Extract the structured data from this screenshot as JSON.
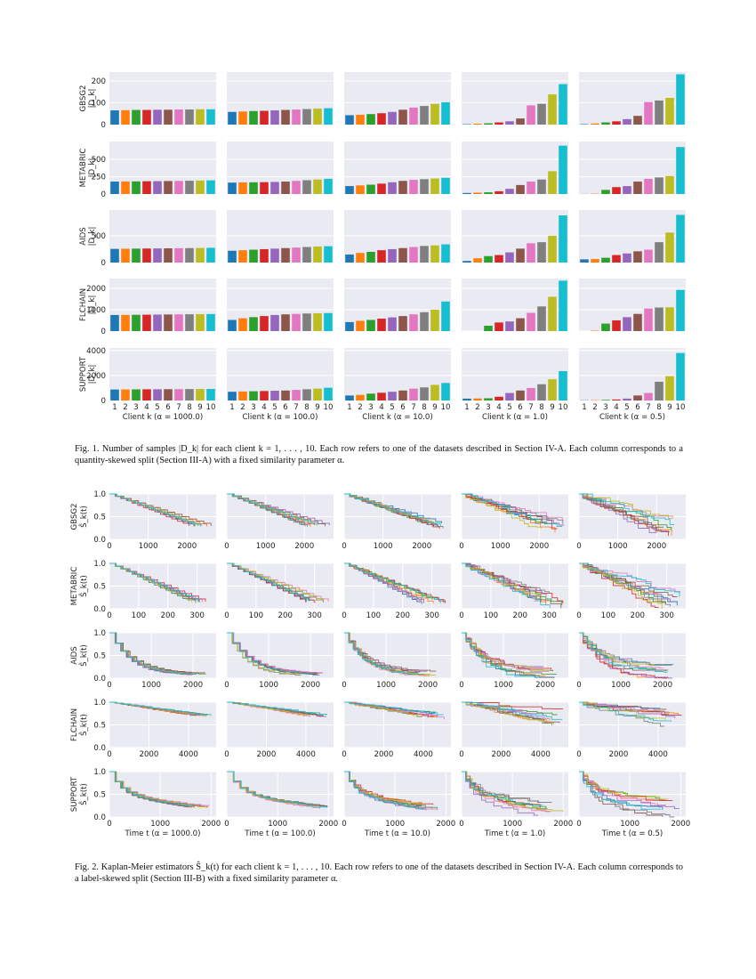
{
  "figure1": {
    "caption": "Fig. 1.  Number of samples |D_k| for each client k = 1, . . . , 10. Each row refers to one of the datasets described in Section IV-A. Each column corresponds to a quantity-skewed split (Section III-A) with a fixed similarity parameter α.",
    "xlabels": [
      "Client k (α = 1000.0)",
      "Client k (α = 100.0)",
      "Client k (α = 10.0)",
      "Client k (α = 1.0)",
      "Client k (α = 0.5)"
    ],
    "ylabel_symbol": "|D_k|"
  },
  "figure2": {
    "caption": "Fig. 2.  Kaplan-Meier estimators Ŝ_k(t) for each client k = 1, . . . , 10. Each row refers to one of the datasets described in Section IV-A. Each column corresponds to a label-skewed split (Section III-B) with a fixed similarity parameter α.",
    "xlabels": [
      "Time t (α = 1000.0)",
      "Time t (α = 100.0)",
      "Time t (α = 10.0)",
      "Time t (α = 1.0)",
      "Time t (α = 0.5)"
    ],
    "ylabel_symbol": "Ŝ_k(t)"
  },
  "colors": [
    "#1f77b4",
    "#ff7f0e",
    "#2ca02c",
    "#d62728",
    "#9467bd",
    "#8c564b",
    "#e377c2",
    "#7f7f7f",
    "#bcbd22",
    "#17becf"
  ],
  "chart_data": [
    {
      "type": "bar",
      "title": "",
      "grid": true,
      "columns": [
        "α = 1000.0",
        "α = 100.0",
        "α = 10.0",
        "α = 1.0",
        "α = 0.5"
      ],
      "categories": [
        "1",
        "2",
        "3",
        "4",
        "5",
        "6",
        "7",
        "8",
        "9",
        "10"
      ],
      "rows": [
        {
          "dataset": "GBSG2",
          "ylim": [
            0,
            240
          ],
          "yticks": [
            0,
            100,
            200
          ],
          "values": [
            [
              65,
              66,
              67,
              67,
              68,
              68,
              69,
              69,
              70,
              70
            ],
            [
              58,
              60,
              62,
              63,
              65,
              67,
              69,
              71,
              73,
              75
            ],
            [
              43,
              45,
              48,
              52,
              58,
              68,
              78,
              85,
              95,
              102
            ],
            [
              2,
              4,
              6,
              10,
              15,
              28,
              88,
              95,
              138,
              185
            ],
            [
              2,
              5,
              10,
              15,
              25,
              40,
              103,
              110,
              122,
              230
            ]
          ]
        },
        {
          "dataset": "METABRIC",
          "ylim": [
            0,
            760
          ],
          "yticks": [
            0,
            250,
            500
          ],
          "values": [
            [
              180,
              182,
              183,
              185,
              186,
              188,
              190,
              192,
              195,
              198
            ],
            [
              165,
              168,
              170,
              172,
              175,
              180,
              190,
              200,
              210,
              220
            ],
            [
              115,
              125,
              135,
              150,
              170,
              190,
              205,
              215,
              225,
              235
            ],
            [
              15,
              20,
              25,
              40,
              75,
              130,
              180,
              210,
              330,
              700
            ],
            [
              2,
              5,
              60,
              100,
              115,
              180,
              220,
              240,
              260,
              680
            ]
          ]
        },
        {
          "dataset": "AIDS",
          "ylim": [
            0,
            980
          ],
          "yticks": [
            0,
            500
          ],
          "values": [
            [
              255,
              258,
              260,
              262,
              264,
              266,
              268,
              270,
              272,
              275
            ],
            [
              220,
              230,
              240,
              250,
              260,
              270,
              280,
              290,
              300,
              305
            ],
            [
              150,
              180,
              200,
              230,
              250,
              270,
              290,
              310,
              320,
              340
            ],
            [
              30,
              80,
              120,
              140,
              190,
              260,
              360,
              380,
              500,
              880
            ],
            [
              60,
              65,
              90,
              140,
              170,
              210,
              240,
              380,
              560,
              890
            ]
          ]
        },
        {
          "dataset": "FLCHAIN",
          "ylim": [
            0,
            2450
          ],
          "yticks": [
            0,
            1000,
            2000
          ],
          "values": [
            [
              750,
              755,
              760,
              765,
              770,
              775,
              780,
              785,
              790,
              795
            ],
            [
              520,
              600,
              650,
              700,
              750,
              780,
              800,
              820,
              830,
              840
            ],
            [
              420,
              480,
              520,
              580,
              640,
              700,
              780,
              880,
              1000,
              1380
            ],
            [
              0,
              0,
              250,
              400,
              450,
              600,
              850,
              1150,
              1600,
              2350
            ],
            [
              0,
              20,
              350,
              500,
              650,
              800,
              1050,
              1100,
              1110,
              1920
            ]
          ]
        },
        {
          "dataset": "SUPPORT",
          "ylim": [
            0,
            4200
          ],
          "yticks": [
            0,
            2000,
            4000
          ],
          "values": [
            [
              880,
              885,
              890,
              895,
              900,
              905,
              910,
              915,
              920,
              925
            ],
            [
              700,
              720,
              740,
              760,
              780,
              800,
              850,
              900,
              950,
              1020
            ],
            [
              400,
              450,
              550,
              620,
              700,
              800,
              950,
              1050,
              1250,
              1400
            ],
            [
              150,
              160,
              180,
              300,
              600,
              800,
              1000,
              1300,
              1700,
              2350
            ],
            [
              20,
              30,
              50,
              80,
              150,
              400,
              600,
              1500,
              1950,
              3800
            ]
          ]
        }
      ]
    },
    {
      "type": "line",
      "title": "",
      "grid": true,
      "step": true,
      "columns": [
        "α = 1000.0",
        "α = 100.0",
        "α = 10.0",
        "α = 1.0",
        "α = 0.5"
      ],
      "yticks": [
        0.0,
        0.5,
        1.0
      ],
      "rows": [
        {
          "dataset": "GBSG2",
          "xlim": [
            0,
            2750
          ],
          "xticks": [
            0,
            1000,
            2000
          ],
          "curve": {
            "shape": "linear",
            "floor": 0.3,
            "tmax": 2650
          }
        },
        {
          "dataset": "METABRIC",
          "xlim": [
            0,
            365
          ],
          "xticks": [
            0,
            100,
            200,
            300
          ],
          "curve": {
            "shape": "linear",
            "floor": 0.15,
            "tmax": 350
          }
        },
        {
          "dataset": "AIDS",
          "xlim": [
            0,
            2550
          ],
          "xticks": [
            0,
            1000,
            2000
          ],
          "curve": {
            "shape": "exp",
            "floor": 0.08,
            "tmax": 2300
          }
        },
        {
          "dataset": "FLCHAIN",
          "xlim": [
            0,
            5400
          ],
          "xticks": [
            0,
            2000,
            4000
          ],
          "curve": {
            "shape": "linear",
            "floor": 0.7,
            "tmax": 5200
          }
        },
        {
          "dataset": "SUPPORT",
          "xlim": [
            0,
            2100
          ],
          "xticks": [
            0,
            1000,
            2000
          ],
          "curve": {
            "shape": "fast",
            "floor": 0.22,
            "tmax": 2000
          }
        }
      ],
      "spread": [
        0.02,
        0.03,
        0.07,
        0.18,
        0.24
      ],
      "series": [
        {
          "name": "k = 1"
        },
        {
          "name": "k = 2"
        },
        {
          "name": "k = 3"
        },
        {
          "name": "k = 4"
        },
        {
          "name": "k = 5"
        },
        {
          "name": "k = 6"
        },
        {
          "name": "k = 7"
        },
        {
          "name": "k = 8"
        },
        {
          "name": "k = 9"
        },
        {
          "name": "k = 10"
        }
      ]
    }
  ]
}
